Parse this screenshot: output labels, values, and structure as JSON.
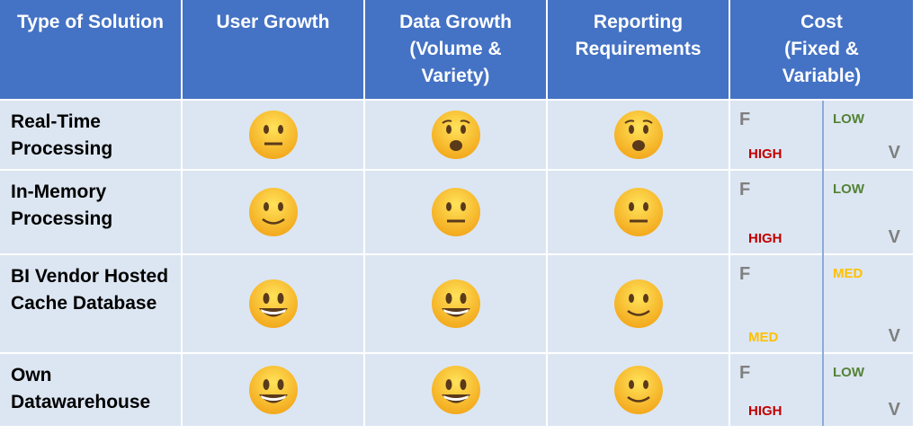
{
  "headers": [
    "Type of Solution",
    "User Growth",
    "Data Growth (Volume & Variety)",
    "Reporting Requirements",
    "Cost (Fixed & Variable)"
  ],
  "cost_labels": {
    "fixed": "F",
    "variable": "V"
  },
  "colors": {
    "HIGH": "#c00000",
    "LOW": "#548235",
    "MED": "#ffc000"
  },
  "rows": [
    {
      "name": "Real-Time Processing",
      "user": "neutral-face",
      "data": "frowning-face",
      "report": "frowning-face",
      "fixed": "HIGH",
      "variable": "LOW"
    },
    {
      "name": "In-Memory Processing",
      "user": "smiling-face",
      "data": "neutral-face",
      "report": "neutral-face",
      "fixed": "HIGH",
      "variable": "LOW"
    },
    {
      "name": "BI Vendor Hosted Cache Database",
      "user": "grinning-face",
      "data": "grinning-face",
      "report": "smiling-face",
      "fixed": "MED",
      "variable": "MED"
    },
    {
      "name": "Own Datawarehouse",
      "user": "grinning-face",
      "data": "grinning-face",
      "report": "smiling-face",
      "fixed": "HIGH",
      "variable": "LOW"
    }
  ]
}
